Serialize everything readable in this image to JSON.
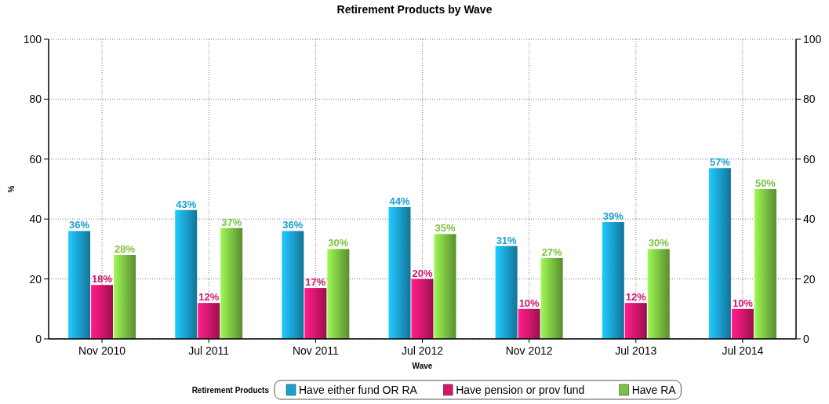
{
  "chart_data": {
    "type": "bar",
    "title": "Retirement Products by Wave",
    "xlabel": "Wave",
    "ylabel": "%",
    "legend_title": "Retirement Products",
    "categories": [
      "Nov 2010",
      "Jul 2011",
      "Nov 2011",
      "Jul 2012",
      "Nov 2012",
      "Jul 2013",
      "Jul 2014"
    ],
    "series": [
      {
        "name": "Have either fund OR RA",
        "color": "#1a9fcf",
        "values": [
          36,
          43,
          36,
          44,
          31,
          39,
          57
        ],
        "value_labels": [
          "36%",
          "43%",
          "36%",
          "44%",
          "31%",
          "39%",
          "57%"
        ]
      },
      {
        "name": "Have pension or prov fund",
        "color": "#d4166e",
        "values": [
          18,
          12,
          17,
          20,
          10,
          12,
          10
        ],
        "value_labels": [
          "18%",
          "12%",
          "17%",
          "20%",
          "10%",
          "12%",
          "10%"
        ]
      },
      {
        "name": "Have RA",
        "color": "#7cc242",
        "values": [
          28,
          37,
          30,
          35,
          27,
          30,
          50
        ],
        "value_labels": [
          "28%",
          "37%",
          "30%",
          "35%",
          "27%",
          "30%",
          "50%"
        ]
      }
    ],
    "ylim": [
      0,
      100
    ],
    "yticks": [
      0,
      20,
      40,
      60,
      80,
      100
    ],
    "y2lim": [
      0,
      100
    ],
    "y2ticks": [
      0,
      20,
      40,
      60,
      80,
      100
    ],
    "grid": true,
    "legend": "bottom"
  }
}
